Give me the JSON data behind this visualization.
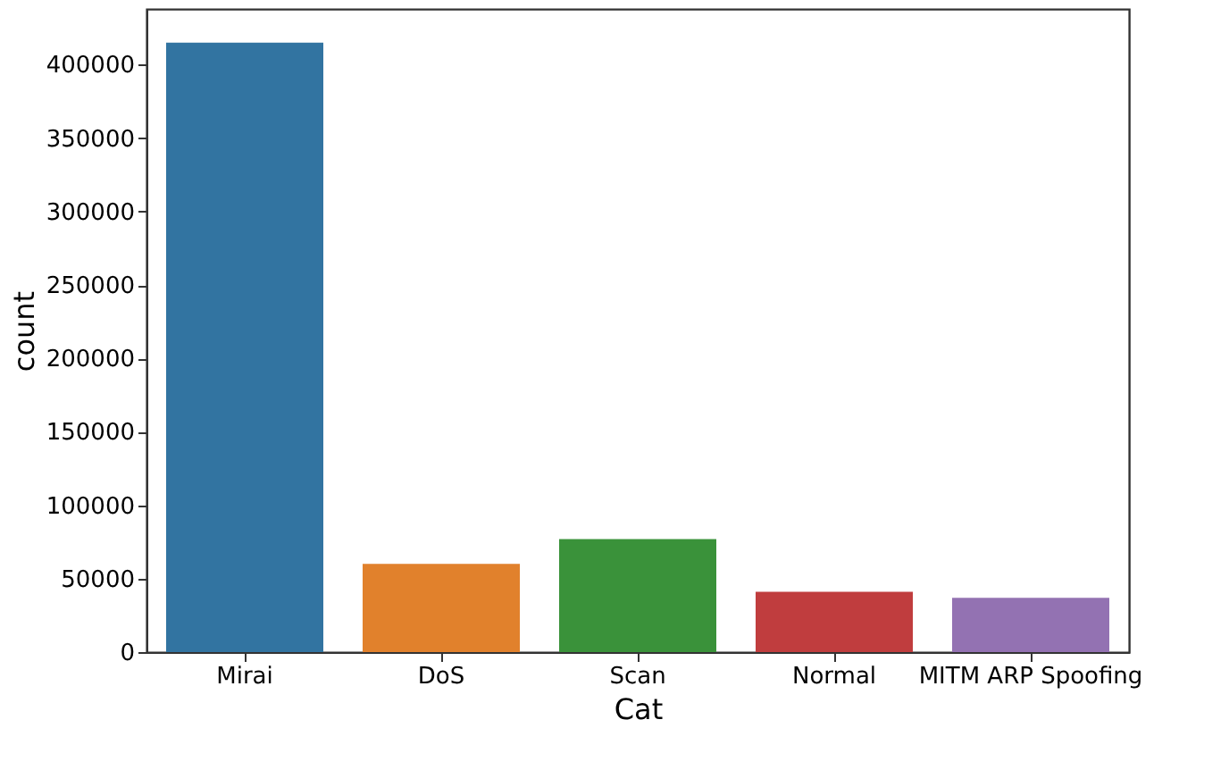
{
  "chart_data": {
    "type": "bar",
    "xlabel": "Cat",
    "ylabel": "count",
    "categories": [
      "Mirai",
      "DoS",
      "Scan",
      "Normal",
      "MITM ARP Spoofing"
    ],
    "values": [
      415000,
      60000,
      77000,
      41000,
      37000
    ],
    "colors": [
      "#3274a1",
      "#e1812c",
      "#3a923a",
      "#c03d3e",
      "#9372b2"
    ],
    "ylim": [
      0,
      438000
    ],
    "yticks": [
      0,
      50000,
      100000,
      150000,
      200000,
      250000,
      300000,
      350000,
      400000
    ],
    "grid": false,
    "legend": false
  }
}
